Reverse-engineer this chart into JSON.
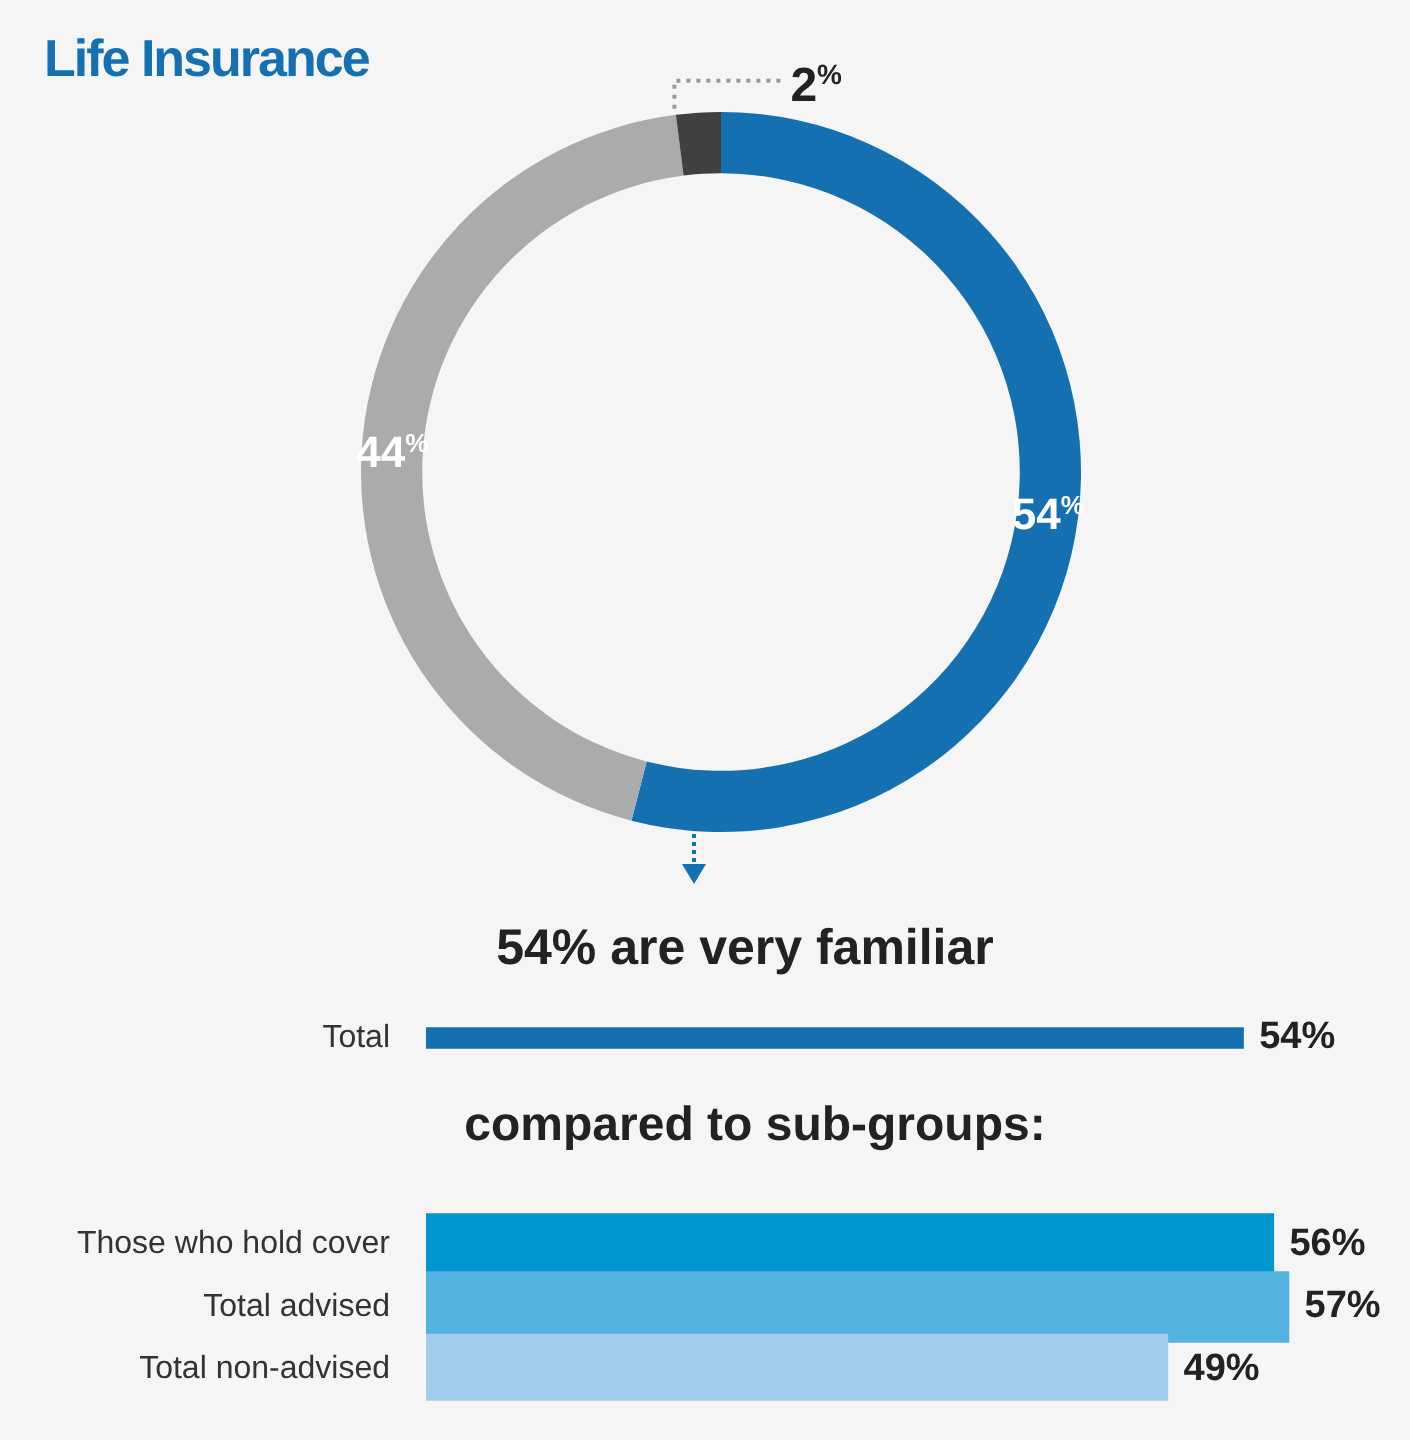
{
  "chart_data": [
    {
      "type": "donut",
      "title": "Life Insurance",
      "categories": [
        null,
        null,
        null
      ],
      "values": [
        54,
        44,
        2
      ],
      "colors": [
        "#1470b0",
        "#a9abac",
        "#404040"
      ],
      "value_labels": [
        "54%",
        "44%",
        "2%"
      ]
    },
    {
      "type": "bar",
      "orientation": "horizontal",
      "title": "54% are very familiar",
      "categories": [
        "Total"
      ],
      "values": [
        54
      ],
      "colors": [
        "#1470b0"
      ],
      "value_labels": [
        "54%"
      ],
      "tick_labels": "y"
    },
    {
      "type": "bar",
      "orientation": "horizontal",
      "title": "compared to sub-groups:",
      "categories": [
        "Those who hold cover",
        "Total advised",
        "Total non-advised"
      ],
      "values": [
        56,
        57,
        49
      ],
      "colors": [
        "#0096d2",
        "#52b2e0",
        "#9fcdeb"
      ],
      "value_labels": [
        "56%",
        "57%",
        "49%"
      ],
      "tick_labels": "y"
    }
  ]
}
